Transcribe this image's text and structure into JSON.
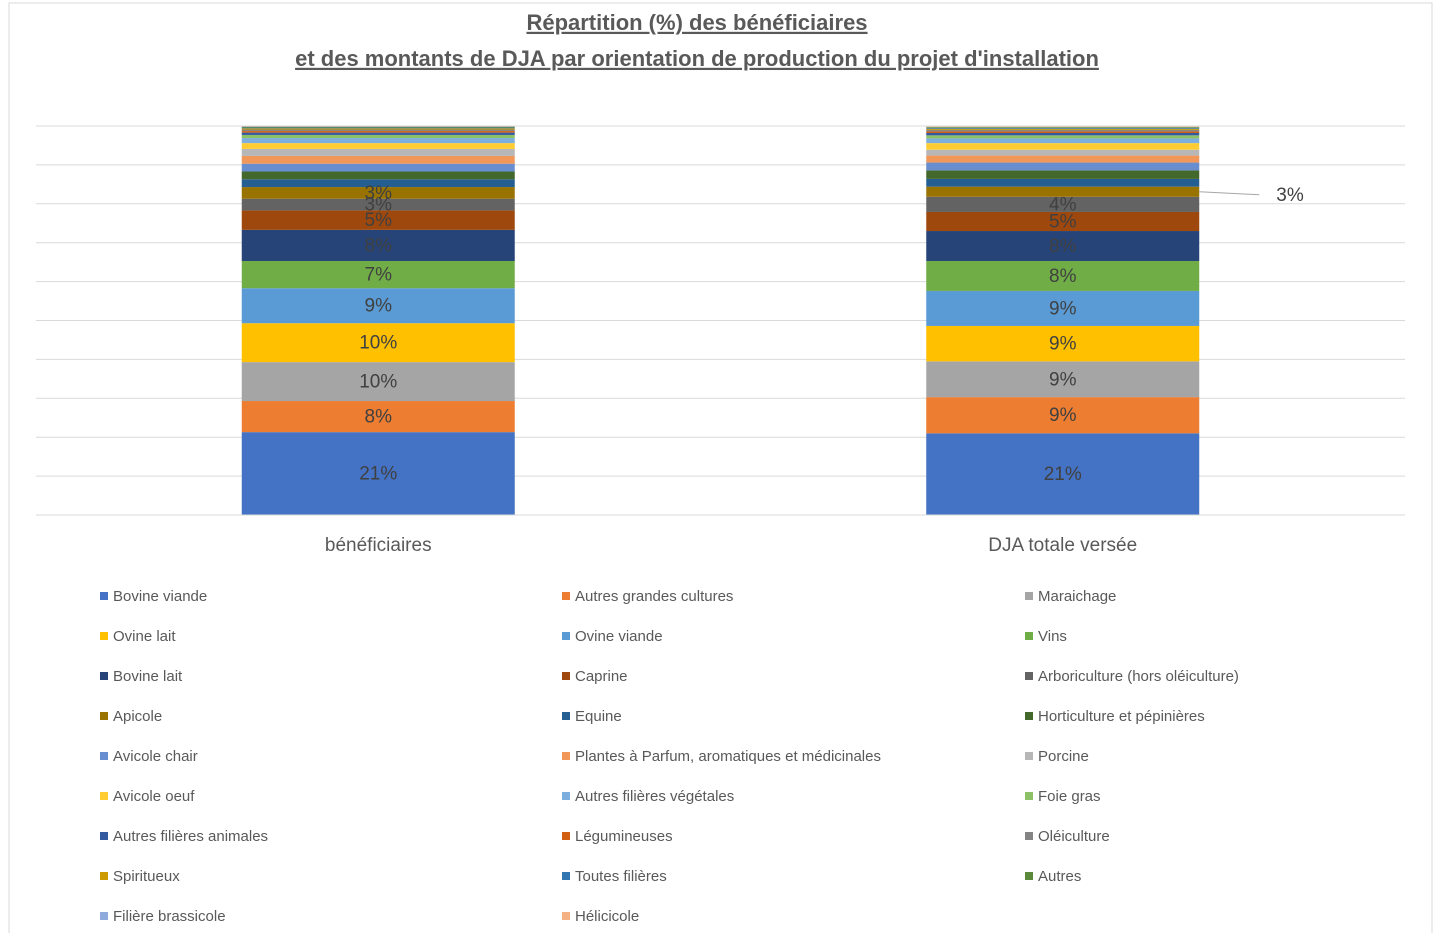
{
  "chart_data": {
    "type": "stacked_bar_100",
    "title": [
      "Répartition (%) des bénéficiaires",
      "et des montants de DJA par orientation de production du projet d'installation"
    ],
    "categories": [
      "bénéficiaires",
      "DJA totale versée"
    ],
    "ylim": [
      0,
      100
    ],
    "yticks": [
      0,
      10,
      20,
      30,
      40,
      50,
      60,
      70,
      80,
      90,
      100
    ],
    "grid": true,
    "series": [
      {
        "name": "Bovine viande",
        "color": "#4472c4",
        "values": [
          21.3,
          21
        ],
        "value_labels": [
          "21%",
          "21%"
        ]
      },
      {
        "name": "Autres grandes cultures",
        "color": "#ed7d31",
        "values": [
          8,
          9.3
        ],
        "value_labels": [
          "8%",
          "9%"
        ]
      },
      {
        "name": "Maraichage",
        "color": "#a5a5a5",
        "values": [
          10,
          9.2
        ],
        "value_labels": [
          "10%",
          "9%"
        ]
      },
      {
        "name": "Ovine lait",
        "color": "#ffc000",
        "values": [
          10,
          9.1
        ],
        "value_labels": [
          "10%",
          "9%"
        ]
      },
      {
        "name": "Ovine viande",
        "color": "#5b9bd5",
        "values": [
          9,
          9
        ],
        "value_labels": [
          "9%",
          "9%"
        ]
      },
      {
        "name": "Vins",
        "color": "#70ad47",
        "values": [
          7,
          7.7
        ],
        "value_labels": [
          "7%",
          "8%"
        ]
      },
      {
        "name": "Bovine lait",
        "color": "#264478",
        "values": [
          8,
          7.7
        ],
        "value_labels": [
          "8%",
          "8%"
        ]
      },
      {
        "name": "Caprine",
        "color": "#9e480e",
        "values": [
          5,
          4.9
        ],
        "value_labels": [
          "5%",
          "5%"
        ]
      },
      {
        "name": "Arboriculture (hors oléiculture)",
        "color": "#636363",
        "values": [
          3,
          3.9
        ],
        "value_labels": [
          "3%",
          "4%"
        ]
      },
      {
        "name": "Apicole",
        "color": "#997300",
        "values": [
          3,
          2.6
        ],
        "value_labels": [
          "3%",
          "3%"
        ]
      },
      {
        "name": "Equine",
        "color": "#255e91",
        "values": [
          2,
          2
        ]
      },
      {
        "name": "Horticulture et pépinières",
        "color": "#43682b",
        "values": [
          2,
          2.2
        ]
      },
      {
        "name": "Avicole chair",
        "color": "#698ed0",
        "values": [
          2,
          2
        ]
      },
      {
        "name": "Plantes à Parfum, aromatiques et médicinales",
        "color": "#f1975a",
        "values": [
          2,
          1.8
        ]
      },
      {
        "name": "Porcine",
        "color": "#b7b7b7",
        "values": [
          1.8,
          1.5
        ]
      },
      {
        "name": "Avicole oeuf",
        "color": "#ffcd33",
        "values": [
          1.5,
          1.7
        ]
      },
      {
        "name": "Autres filières végétales",
        "color": "#7cafdd",
        "values": [
          1.3,
          1.2
        ]
      },
      {
        "name": "Foie gras",
        "color": "#8cc168",
        "values": [
          0.8,
          0.8
        ]
      },
      {
        "name": "Autres filières animales",
        "color": "#335aa1",
        "values": [
          0.6,
          0.6
        ]
      },
      {
        "name": "Légumineuses",
        "color": "#d26012",
        "values": [
          0.4,
          0.4
        ]
      },
      {
        "name": "Oléiculture",
        "color": "#848484",
        "values": [
          0.4,
          0.4
        ]
      },
      {
        "name": "Spiritueux",
        "color": "#cc9a00",
        "values": [
          0.3,
          0.3
        ]
      },
      {
        "name": "Toutes filières",
        "color": "#3175b1",
        "values": [
          0.2,
          0.2
        ]
      },
      {
        "name": "Autres",
        "color": "#5a8a39",
        "values": [
          0.2,
          0.2
        ]
      },
      {
        "name": "Filière brassicole",
        "color": "#8faadc",
        "values": [
          0.1,
          0.1
        ]
      },
      {
        "name": "Hélicicole",
        "color": "#f4b183",
        "values": [
          0.1,
          0.1
        ]
      }
    ]
  }
}
